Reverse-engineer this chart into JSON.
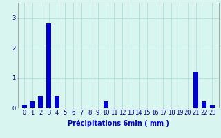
{
  "categories": [
    0,
    1,
    2,
    3,
    4,
    5,
    6,
    7,
    8,
    9,
    10,
    11,
    12,
    13,
    14,
    15,
    16,
    17,
    18,
    19,
    20,
    21,
    22,
    23
  ],
  "values": [
    0.1,
    0.2,
    0.4,
    2.8,
    0.4,
    0.0,
    0.0,
    0.0,
    0.0,
    0.0,
    0.2,
    0.0,
    0.0,
    0.0,
    0.0,
    0.0,
    0.0,
    0.0,
    0.0,
    0.0,
    0.0,
    1.2,
    0.2,
    0.1
  ],
  "bar_color": "#0000cc",
  "background_color": "#d8f5f0",
  "grid_color": "#aaddda",
  "xlabel": "Précipitations 6min ( mm )",
  "ylim": [
    0,
    3.5
  ],
  "yticks": [
    0,
    1,
    2,
    3
  ],
  "xlabel_fontsize": 7,
  "tick_fontsize": 6,
  "bar_width": 0.6
}
